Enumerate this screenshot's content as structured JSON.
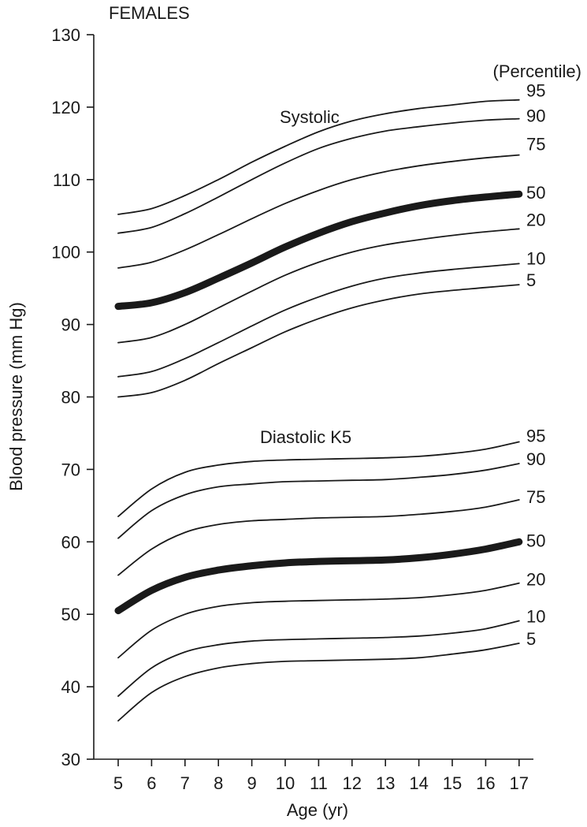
{
  "chart_data": {
    "type": "line",
    "title": "FEMALES",
    "xlabel": "Age (yr)",
    "ylabel": "Blood pressure (mm Hg)",
    "legend_title": "(Percentile)",
    "xlim": [
      4.6,
      17.6
    ],
    "ylim": [
      30,
      130
    ],
    "x_ticks": [
      5,
      6,
      7,
      8,
      9,
      10,
      11,
      12,
      13,
      14,
      15,
      16,
      17
    ],
    "y_ticks": [
      30,
      40,
      50,
      60,
      70,
      80,
      90,
      100,
      110,
      120,
      130
    ],
    "grid": false,
    "x": [
      5,
      6,
      7,
      8,
      9,
      10,
      11,
      12,
      13,
      14,
      15,
      16,
      17
    ],
    "groups": [
      {
        "name": "Systolic",
        "series": [
          {
            "name": "95",
            "values": [
              105.2,
              106.0,
              107.8,
              110.0,
              112.4,
              114.6,
              116.6,
              118.1,
              119.1,
              119.8,
              120.3,
              120.8,
              121.0
            ]
          },
          {
            "name": "90",
            "values": [
              102.6,
              103.4,
              105.3,
              107.6,
              110.0,
              112.3,
              114.3,
              115.7,
              116.7,
              117.3,
              117.8,
              118.2,
              118.4
            ]
          },
          {
            "name": "75",
            "values": [
              97.8,
              98.6,
              100.3,
              102.4,
              104.6,
              106.7,
              108.5,
              110.0,
              111.1,
              111.9,
              112.5,
              113.0,
              113.4
            ]
          },
          {
            "name": "50",
            "values": [
              92.5,
              93.0,
              94.4,
              96.4,
              98.5,
              100.7,
              102.6,
              104.2,
              105.4,
              106.4,
              107.1,
              107.6,
              108.0
            ]
          },
          {
            "name": "20",
            "values": [
              87.5,
              88.2,
              90.0,
              92.3,
              94.6,
              96.8,
              98.6,
              100.0,
              101.0,
              101.7,
              102.3,
              102.8,
              103.2
            ]
          },
          {
            "name": "10",
            "values": [
              82.8,
              83.5,
              85.3,
              87.5,
              89.8,
              92.0,
              93.8,
              95.3,
              96.4,
              97.1,
              97.6,
              98.0,
              98.4
            ]
          },
          {
            "name": "5",
            "values": [
              80.0,
              80.6,
              82.3,
              84.6,
              86.8,
              89.0,
              90.8,
              92.3,
              93.4,
              94.2,
              94.7,
              95.1,
              95.5
            ]
          }
        ]
      },
      {
        "name": "Diastolic K5",
        "series": [
          {
            "name": "95",
            "values": [
              63.5,
              67.3,
              69.6,
              70.6,
              71.1,
              71.3,
              71.4,
              71.5,
              71.6,
              71.8,
              72.2,
              72.8,
              73.8
            ]
          },
          {
            "name": "90",
            "values": [
              60.5,
              64.3,
              66.5,
              67.6,
              68.0,
              68.3,
              68.4,
              68.5,
              68.6,
              68.9,
              69.3,
              69.9,
              70.8
            ]
          },
          {
            "name": "75",
            "values": [
              55.4,
              59.0,
              61.3,
              62.4,
              62.9,
              63.1,
              63.3,
              63.4,
              63.5,
              63.8,
              64.2,
              64.8,
              65.8
            ]
          },
          {
            "name": "50",
            "values": [
              50.5,
              53.3,
              55.1,
              56.1,
              56.7,
              57.1,
              57.3,
              57.4,
              57.5,
              57.8,
              58.3,
              59.0,
              60.0
            ]
          },
          {
            "name": "20",
            "values": [
              44.0,
              47.8,
              50.0,
              51.1,
              51.6,
              51.8,
              51.9,
              52.0,
              52.1,
              52.3,
              52.7,
              53.3,
              54.3
            ]
          },
          {
            "name": "10",
            "values": [
              38.7,
              42.6,
              44.8,
              45.8,
              46.3,
              46.5,
              46.6,
              46.7,
              46.8,
              47.0,
              47.4,
              48.0,
              49.1
            ]
          },
          {
            "name": "5",
            "values": [
              35.3,
              39.2,
              41.4,
              42.6,
              43.2,
              43.5,
              43.6,
              43.7,
              43.8,
              44.0,
              44.5,
              45.1,
              46.0
            ]
          }
        ]
      }
    ]
  }
}
